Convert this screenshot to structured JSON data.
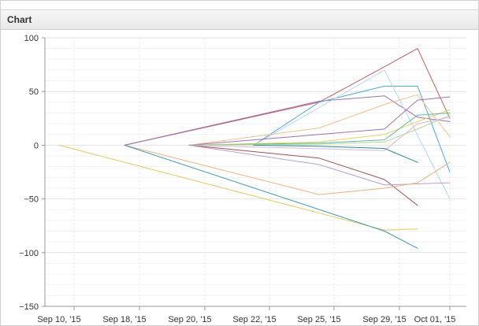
{
  "panel": {
    "title": "Chart"
  },
  "chart_data": {
    "type": "line",
    "title": "",
    "xlabel": "",
    "ylabel": "",
    "ylim": [
      -150,
      100
    ],
    "y_ticks": [
      100,
      50,
      0,
      -50,
      -100,
      -150
    ],
    "y_tick_labels": [
      "100",
      "50",
      "0",
      "−50",
      "−100",
      "−150"
    ],
    "x_ticks": [
      "Sep 10, '15",
      "Sep 18, '15",
      "Sep 20, '15",
      "Sep 22, '15",
      "Sep 25, '15",
      "Sep 29, '15",
      "Oct 01, '15"
    ],
    "grid": true,
    "legend": "none",
    "series": [
      {
        "color": "#c06060",
        "points": [
          [
            "Sep 18, '15",
            0
          ],
          [
            "Sep 25, '15",
            40
          ],
          [
            "Sep 29, '15",
            73
          ],
          [
            "Sep 30, '15",
            90
          ],
          [
            "Oct 01, '15",
            25
          ]
        ]
      },
      {
        "color": "#a070b0",
        "points": [
          [
            "Sep 18, '15",
            0
          ],
          [
            "Sep 25, '15",
            41
          ],
          [
            "Sep 29, '15",
            46
          ],
          [
            "Sep 30, '15",
            26
          ],
          [
            "Oct 01, '15",
            22
          ]
        ]
      },
      {
        "color": "#4aa8d8",
        "points": [
          [
            "Sep 22, '15",
            0
          ],
          [
            "Sep 25, '15",
            40
          ],
          [
            "Sep 29, '15",
            55
          ],
          [
            "Sep 30, '15",
            55
          ],
          [
            "Oct 01, '15",
            -25
          ]
        ]
      },
      {
        "color": "#b8d8f0",
        "points": [
          [
            "Sep 22, '15",
            0
          ],
          [
            "Sep 29, '15",
            70
          ],
          [
            "Oct 01, '15",
            -50
          ]
        ]
      },
      {
        "color": "#f0c090",
        "points": [
          [
            "Sep 20, '15",
            0
          ],
          [
            "Sep 25, '15",
            16
          ],
          [
            "Sep 29, '15",
            38
          ],
          [
            "Sep 30, '15",
            47
          ],
          [
            "Oct 01, '15",
            8
          ]
        ]
      },
      {
        "color": "#a070b0",
        "points": [
          [
            "Sep 20, '15",
            0
          ],
          [
            "Sep 25, '15",
            10
          ],
          [
            "Sep 29, '15",
            15
          ],
          [
            "Sep 30, '15",
            42
          ],
          [
            "Oct 01, '15",
            45
          ]
        ]
      },
      {
        "color": "#f0d060",
        "points": [
          [
            "Sep 20, '15",
            0
          ],
          [
            "Sep 25, '15",
            3
          ],
          [
            "Sep 29, '15",
            10
          ],
          [
            "Sep 30, '15",
            22
          ],
          [
            "Oct 01, '15",
            33
          ]
        ]
      },
      {
        "color": "#60b8b0",
        "points": [
          [
            "Sep 20, '15",
            0
          ],
          [
            "Sep 25, '15",
            2
          ],
          [
            "Sep 29, '15",
            5
          ],
          [
            "Sep 30, '15",
            28
          ],
          [
            "Oct 01, '15",
            30
          ]
        ]
      },
      {
        "color": "#b0d890",
        "points": [
          [
            "Sep 20, '15",
            0
          ],
          [
            "Sep 25, '15",
            1
          ],
          [
            "Sep 29, '15",
            3
          ],
          [
            "Sep 30, '15",
            15
          ],
          [
            "Oct 01, '15",
            28
          ]
        ]
      },
      {
        "color": "#d8b8d8",
        "points": [
          [
            "Sep 20, '15",
            0
          ],
          [
            "Sep 29, '15",
            -5
          ],
          [
            "Sep 30, '15",
            20
          ],
          [
            "Oct 01, '15",
            26
          ]
        ]
      },
      {
        "color": "#2a8a8a",
        "points": [
          [
            "Sep 22, '15",
            0
          ],
          [
            "Sep 25, '15",
            -1
          ],
          [
            "Sep 29, '15",
            -3
          ],
          [
            "Sep 30, '15",
            -16
          ]
        ]
      },
      {
        "color": "#a05050",
        "points": [
          [
            "Sep 20, '15",
            0
          ],
          [
            "Sep 25, '15",
            -12
          ],
          [
            "Sep 29, '15",
            -32
          ],
          [
            "Sep 30, '15",
            -56
          ]
        ]
      },
      {
        "color": "#b8a0c8",
        "points": [
          [
            "Sep 20, '15",
            0
          ],
          [
            "Sep 25, '15",
            -18
          ],
          [
            "Sep 29, '15",
            -37
          ],
          [
            "Sep 30, '15",
            -36
          ],
          [
            "Oct 01, '15",
            -35
          ]
        ]
      },
      {
        "color": "#f0b080",
        "points": [
          [
            "Sep 18, '15",
            0
          ],
          [
            "Sep 25, '15",
            -46
          ],
          [
            "Sep 29, '15",
            -40
          ],
          [
            "Sep 30, '15",
            -35
          ],
          [
            "Oct 01, '15",
            -16
          ]
        ]
      },
      {
        "color": "#e8c858",
        "points": [
          [
            "Sep 10, '15",
            0
          ],
          [
            "Sep 29, '15",
            -79
          ],
          [
            "Sep 30, '15",
            -78
          ]
        ]
      },
      {
        "color": "#3a98b0",
        "points": [
          [
            "Sep 18, '15",
            0
          ],
          [
            "Sep 29, '15",
            -80
          ],
          [
            "Sep 30, '15",
            -96
          ]
        ]
      }
    ]
  }
}
